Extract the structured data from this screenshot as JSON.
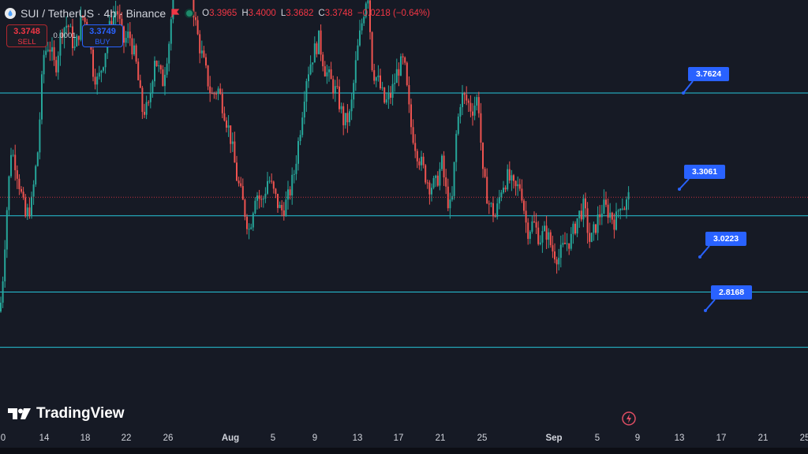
{
  "header": {
    "symbol": "SUI / TetherUS · 4h · Binance",
    "o_label": "O",
    "o_value": "3.3965",
    "h_label": "H",
    "h_value": "3.4000",
    "l_label": "L",
    "l_value": "3.3682",
    "c_label": "C",
    "c_value": "3.3748",
    "change": "−0.0218 (−0.64%)"
  },
  "trade": {
    "sell_price": "3.3748",
    "sell_label": "SELL",
    "spread": "0.0001",
    "buy_price": "3.3749",
    "buy_label": "BUY"
  },
  "logo": {
    "text": "TradingView"
  },
  "colors": {
    "up": "#26a69a",
    "down": "#ef5350",
    "line": "#26c6da",
    "callout": "#2962ff",
    "background": "#161a25"
  },
  "chart_data": {
    "type": "candlestick",
    "title": "SUI / TetherUS · 4h · Binance",
    "x_ticks": [
      "0",
      "14",
      "18",
      "22",
      "26",
      "Aug",
      "5",
      "9",
      "13",
      "17",
      "21",
      "25",
      "Sep",
      "5",
      "9",
      "13",
      "17",
      "21",
      "25"
    ],
    "ylim": [
      2.5,
      4.3
    ],
    "grid": false,
    "levels": [
      {
        "label": "3.7624",
        "value": 3.7624
      },
      {
        "label": "3.3061",
        "value": 3.3061
      },
      {
        "label": "3.0223",
        "value": 3.0223
      },
      {
        "label": "2.8168",
        "value": 2.8168
      }
    ],
    "current_price": 3.3748,
    "close_path": [
      [
        0,
        2.95
      ],
      [
        3,
        3.05
      ],
      [
        8,
        3.3
      ],
      [
        14,
        3.55
      ],
      [
        20,
        3.5
      ],
      [
        26,
        3.4
      ],
      [
        32,
        3.3
      ],
      [
        40,
        3.35
      ],
      [
        48,
        3.55
      ],
      [
        55,
        3.9
      ],
      [
        62,
        3.95
      ],
      [
        70,
        3.85
      ],
      [
        78,
        4.0
      ],
      [
        86,
        4.02
      ],
      [
        95,
        3.92
      ],
      [
        104,
        4.05
      ],
      [
        112,
        4.0
      ],
      [
        118,
        3.85
      ],
      [
        124,
        3.8
      ],
      [
        132,
        3.9
      ],
      [
        140,
        4.02
      ],
      [
        148,
        4.08
      ],
      [
        156,
        3.95
      ],
      [
        164,
        3.98
      ],
      [
        172,
        3.88
      ],
      [
        180,
        3.7
      ],
      [
        188,
        3.7
      ],
      [
        196,
        3.9
      ],
      [
        206,
        3.8
      ],
      [
        214,
        3.95
      ],
      [
        222,
        4.2
      ],
      [
        228,
        4.28
      ],
      [
        234,
        4.15
      ],
      [
        240,
        4.25
      ],
      [
        246,
        4.05
      ],
      [
        252,
        3.95
      ],
      [
        260,
        3.85
      ],
      [
        268,
        3.75
      ],
      [
        276,
        3.78
      ],
      [
        284,
        3.7
      ],
      [
        292,
        3.6
      ],
      [
        300,
        3.45
      ],
      [
        308,
        3.35
      ],
      [
        316,
        3.25
      ],
      [
        324,
        3.4
      ],
      [
        332,
        3.35
      ],
      [
        340,
        3.45
      ],
      [
        348,
        3.38
      ],
      [
        356,
        3.32
      ],
      [
        364,
        3.36
      ],
      [
        372,
        3.45
      ],
      [
        380,
        3.62
      ],
      [
        388,
        3.82
      ],
      [
        396,
        3.9
      ],
      [
        404,
        3.96
      ],
      [
        412,
        3.85
      ],
      [
        420,
        3.8
      ],
      [
        428,
        3.75
      ],
      [
        436,
        3.65
      ],
      [
        444,
        3.68
      ],
      [
        452,
        3.9
      ],
      [
        460,
        4.05
      ],
      [
        466,
        4.15
      ],
      [
        472,
        3.85
      ],
      [
        480,
        3.8
      ],
      [
        488,
        3.72
      ],
      [
        496,
        3.76
      ],
      [
        504,
        3.85
      ],
      [
        512,
        3.88
      ],
      [
        520,
        3.65
      ],
      [
        528,
        3.55
      ],
      [
        536,
        3.48
      ],
      [
        544,
        3.42
      ],
      [
        552,
        3.42
      ],
      [
        560,
        3.5
      ],
      [
        566,
        3.38
      ],
      [
        572,
        3.32
      ],
      [
        578,
        3.6
      ],
      [
        584,
        3.75
      ],
      [
        590,
        3.74
      ],
      [
        598,
        3.7
      ],
      [
        606,
        3.75
      ],
      [
        612,
        3.45
      ],
      [
        620,
        3.35
      ],
      [
        628,
        3.3
      ],
      [
        636,
        3.42
      ],
      [
        644,
        3.45
      ],
      [
        652,
        3.4
      ],
      [
        660,
        3.42
      ],
      [
        668,
        3.25
      ],
      [
        676,
        3.28
      ],
      [
        684,
        3.22
      ],
      [
        692,
        3.25
      ],
      [
        700,
        3.18
      ],
      [
        708,
        3.15
      ],
      [
        716,
        3.2
      ],
      [
        724,
        3.22
      ],
      [
        732,
        3.3
      ],
      [
        740,
        3.34
      ],
      [
        748,
        3.2
      ],
      [
        756,
        3.28
      ],
      [
        764,
        3.34
      ],
      [
        772,
        3.32
      ],
      [
        780,
        3.28
      ],
      [
        786,
        3.36
      ],
      [
        792,
        3.34
      ],
      [
        797,
        3.3748
      ]
    ]
  },
  "callouts": [
    {
      "label": "3.7624"
    },
    {
      "label": "3.3061"
    },
    {
      "label": "3.0223"
    },
    {
      "label": "2.8168"
    }
  ]
}
